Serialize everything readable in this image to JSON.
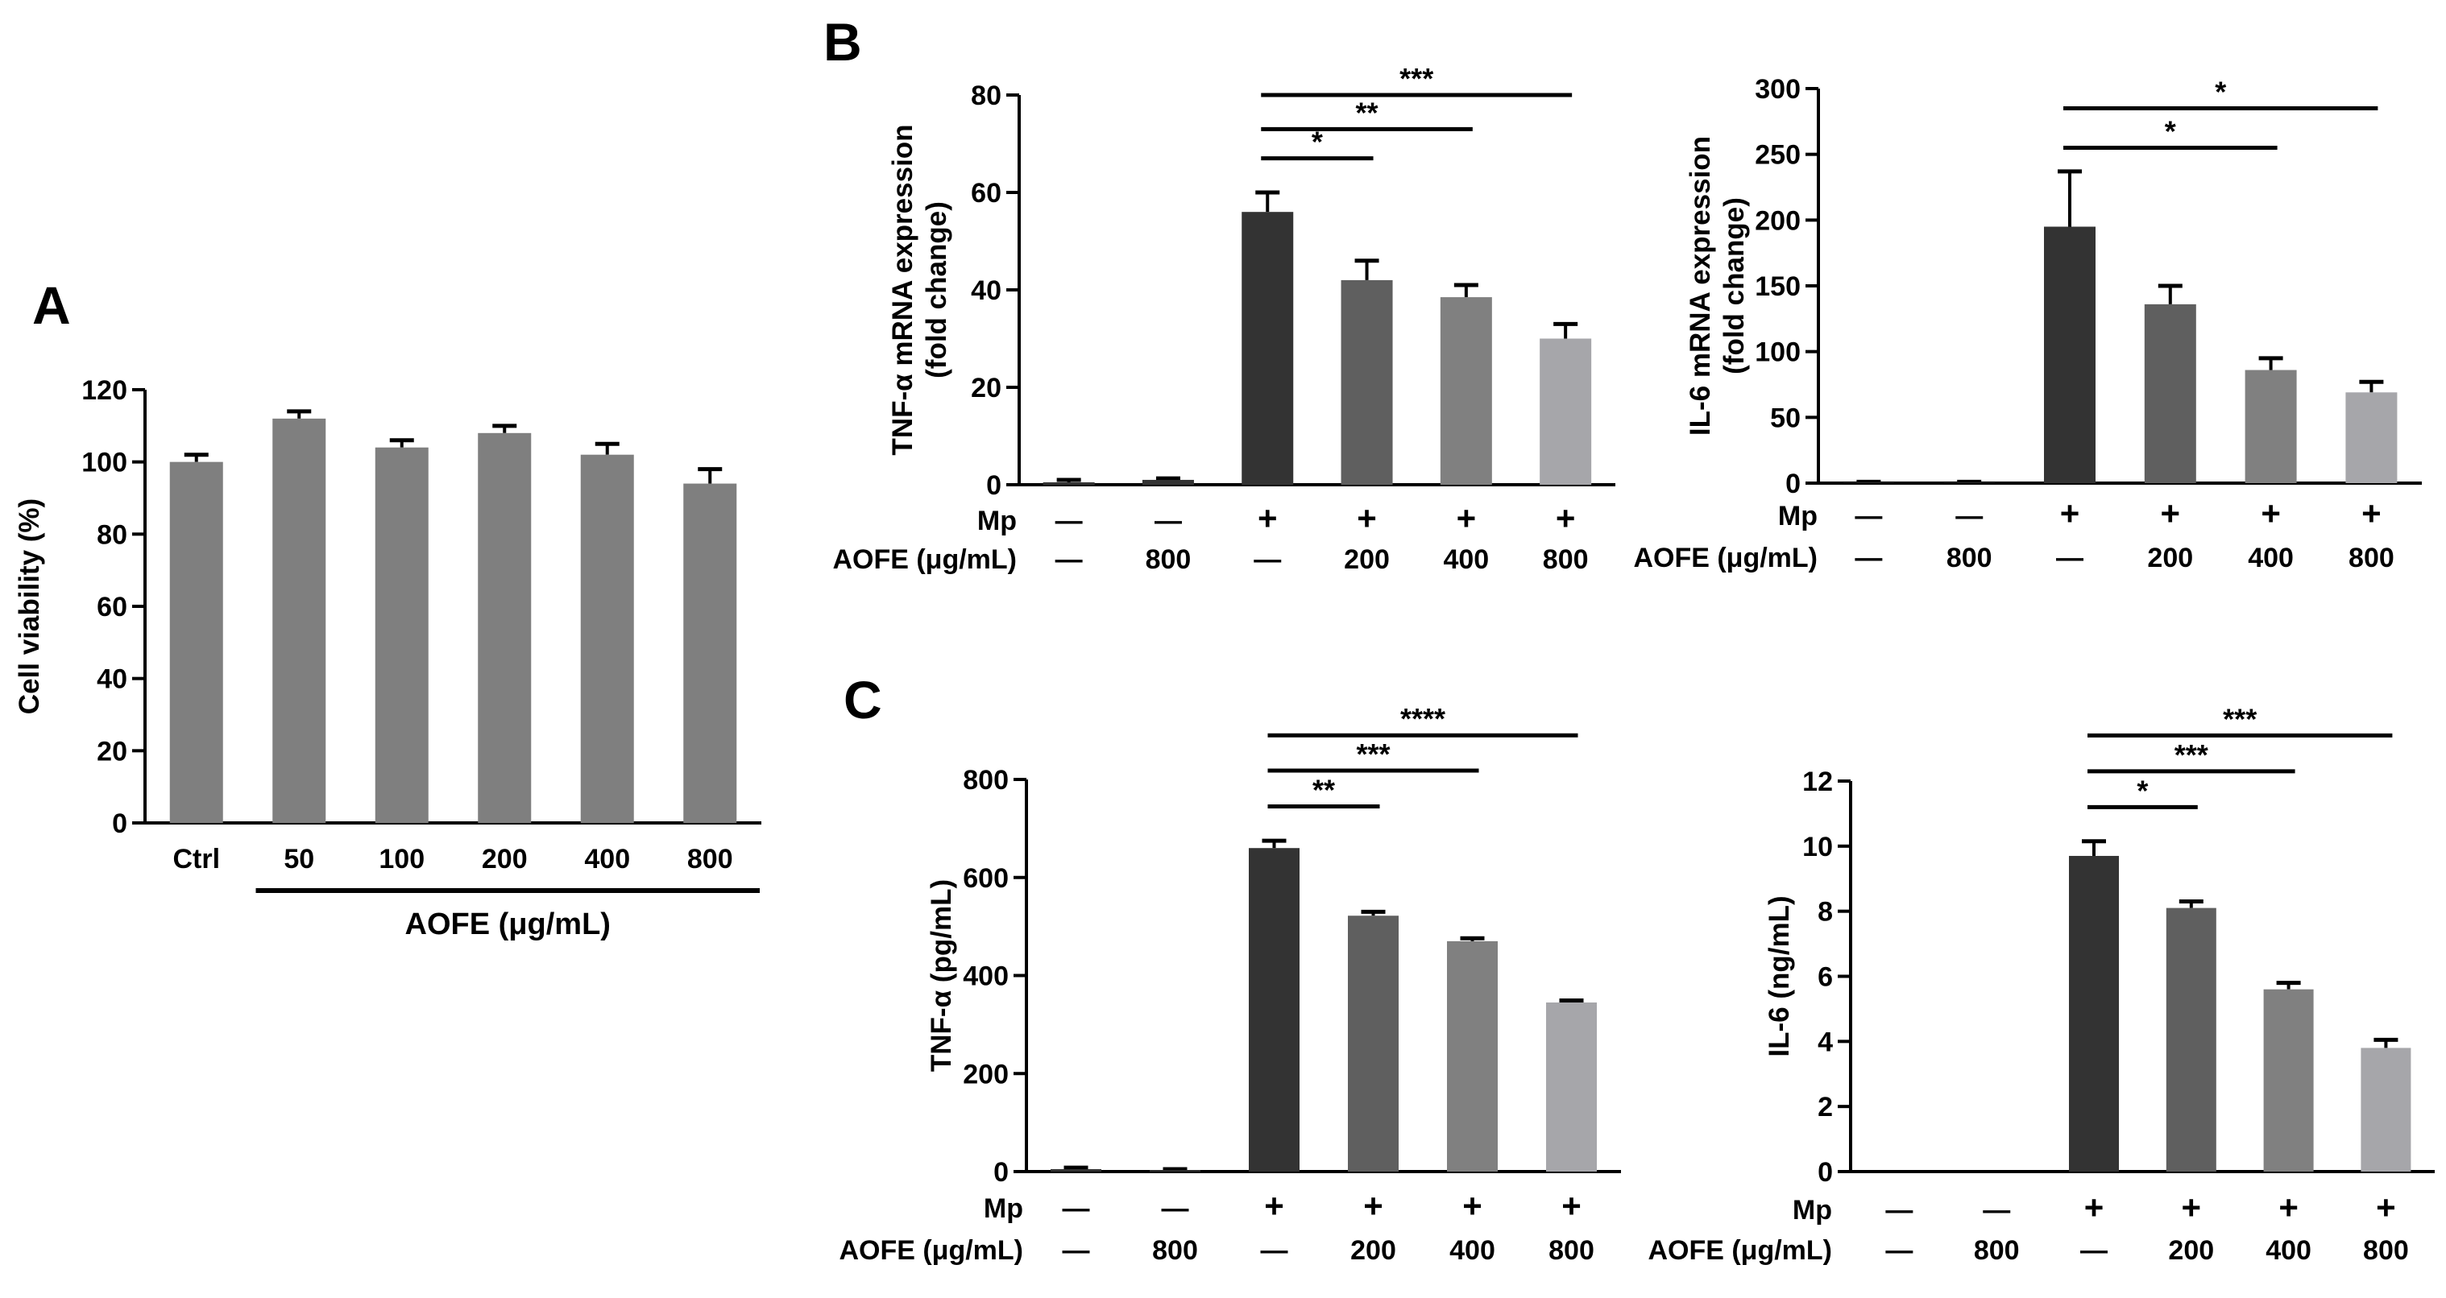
{
  "panel_labels": {
    "a": "A",
    "b": "B",
    "c": "C"
  },
  "colors": {
    "bar_gray": "#7f7f7f",
    "g1": "#333333",
    "g2": "#5f5f5f",
    "g3": "#808080",
    "g4": "#a6a6aa",
    "axis": "#000000"
  },
  "condition_rows": {
    "mp_label": "Mp",
    "aofe_label": "AOFE (μg/mL)",
    "mp": [
      "—",
      "—",
      "+",
      "+",
      "+",
      "+"
    ],
    "aofe": [
      "—",
      "800",
      "—",
      "200",
      "400",
      "800"
    ]
  },
  "chart_data": [
    {
      "id": "A",
      "type": "bar",
      "title": "",
      "xlabel": "AOFE (μg/mL)",
      "ylabel": "Cell viability (%)",
      "categories": [
        "Ctrl",
        "50",
        "100",
        "200",
        "400",
        "800"
      ],
      "values": [
        100,
        112,
        104,
        108,
        102,
        94
      ],
      "errors": [
        2,
        2,
        2,
        2,
        3,
        4
      ],
      "ylim": [
        0,
        120
      ],
      "yticks": [
        0,
        20,
        40,
        60,
        80,
        100,
        120
      ],
      "grid": false
    },
    {
      "id": "B1",
      "type": "bar",
      "title": "",
      "xlabel": "",
      "ylabel": "TNF-α mRNA expression",
      "ylabel2": "(fold change)",
      "values": [
        0.5,
        1,
        56,
        42,
        38.5,
        30
      ],
      "errors": [
        0.5,
        0.3,
        4,
        4,
        2.5,
        3
      ],
      "ylim": [
        0,
        80
      ],
      "yticks": [
        0,
        20,
        40,
        60,
        80
      ],
      "significance": [
        {
          "from": 2,
          "to": 3,
          "label": "*",
          "y": 67
        },
        {
          "from": 2,
          "to": 4,
          "label": "**",
          "y": 73
        },
        {
          "from": 2,
          "to": 5,
          "label": "***",
          "y": 80
        }
      ]
    },
    {
      "id": "B2",
      "type": "bar",
      "title": "",
      "xlabel": "",
      "ylabel": "IL-6 mRNA expression",
      "ylabel2": "(fold change)",
      "values": [
        0.5,
        0.5,
        195,
        136,
        86,
        69
      ],
      "errors": [
        0.5,
        0.5,
        42,
        14,
        9,
        8
      ],
      "ylim": [
        0,
        300
      ],
      "yticks": [
        0,
        50,
        100,
        150,
        200,
        250,
        300
      ],
      "significance": [
        {
          "from": 2,
          "to": 4,
          "label": "*",
          "y": 255
        },
        {
          "from": 2,
          "to": 5,
          "label": "*",
          "y": 285
        }
      ]
    },
    {
      "id": "C1",
      "type": "bar",
      "title": "",
      "xlabel": "",
      "ylabel": "TNF-α (pg/mL)",
      "values": [
        5,
        3,
        660,
        522,
        470,
        345
      ],
      "errors": [
        3,
        2,
        15,
        8,
        6,
        4
      ],
      "ylim": [
        0,
        800
      ],
      "yticks": [
        0,
        200,
        400,
        600,
        800
      ],
      "significance": [
        {
          "from": 2,
          "to": 3,
          "label": "**",
          "y": 745
        },
        {
          "from": 2,
          "to": 4,
          "label": "***",
          "y": 818
        },
        {
          "from": 2,
          "to": 5,
          "label": "****",
          "y": 890
        }
      ]
    },
    {
      "id": "C2",
      "type": "bar",
      "title": "",
      "xlabel": "",
      "ylabel": "IL-6 (ng/mL)",
      "values": [
        0,
        0,
        9.7,
        8.1,
        5.6,
        3.8
      ],
      "errors": [
        0,
        0,
        0.45,
        0.2,
        0.2,
        0.25
      ],
      "ylim": [
        0,
        12
      ],
      "yticks": [
        0,
        2,
        4,
        6,
        8,
        10,
        12
      ],
      "significance": [
        {
          "from": 2,
          "to": 3,
          "label": "*",
          "y": 11.2
        },
        {
          "from": 2,
          "to": 4,
          "label": "***",
          "y": 12.3
        },
        {
          "from": 2,
          "to": 5,
          "label": "***",
          "y": 13.4
        }
      ]
    }
  ]
}
